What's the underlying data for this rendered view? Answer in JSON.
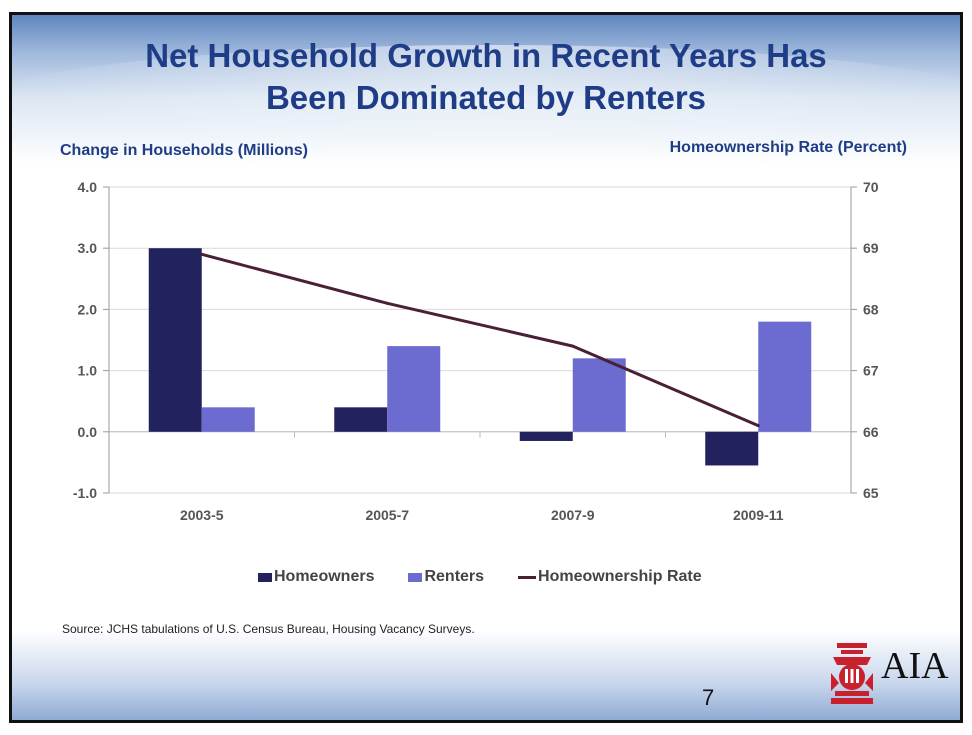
{
  "slide": {
    "title_line1": "Net Household Growth in Recent Years Has",
    "title_line2": "Been Dominated by Renters",
    "source": "Source: JCHS tabulations of U.S. Census Bureau, Housing Vacancy Surveys.",
    "page_number": "7",
    "logo_text": "AIA"
  },
  "colors": {
    "homeowners": "#22235e",
    "renters": "#6b6bd0",
    "rate_line": "#4a2036",
    "grid": "#d9d9d9"
  },
  "chart_data": {
    "type": "bar",
    "categories": [
      "2003-5",
      "2005-7",
      "2007-9",
      "2009-11"
    ],
    "series": [
      {
        "name": "Homeowners",
        "type": "bar",
        "axis": "left",
        "values": [
          3.0,
          0.4,
          -0.15,
          -0.55
        ]
      },
      {
        "name": "Renters",
        "type": "bar",
        "axis": "left",
        "values": [
          0.4,
          1.4,
          1.2,
          1.8
        ]
      },
      {
        "name": "Homeownership Rate",
        "type": "line",
        "axis": "right",
        "values": [
          68.9,
          68.1,
          67.4,
          66.1
        ]
      }
    ],
    "ylabel": "Change in Households (Millions)",
    "y2label": "Homeownership Rate (Percent)",
    "ylim": [
      -1.0,
      4.0
    ],
    "y2lim": [
      65,
      70
    ],
    "yticks": [
      "-1.0",
      "0.0",
      "1.0",
      "2.0",
      "3.0",
      "4.0"
    ],
    "y2ticks": [
      "65",
      "66",
      "67",
      "68",
      "69",
      "70"
    ],
    "grid": true,
    "legend_position": "bottom"
  }
}
